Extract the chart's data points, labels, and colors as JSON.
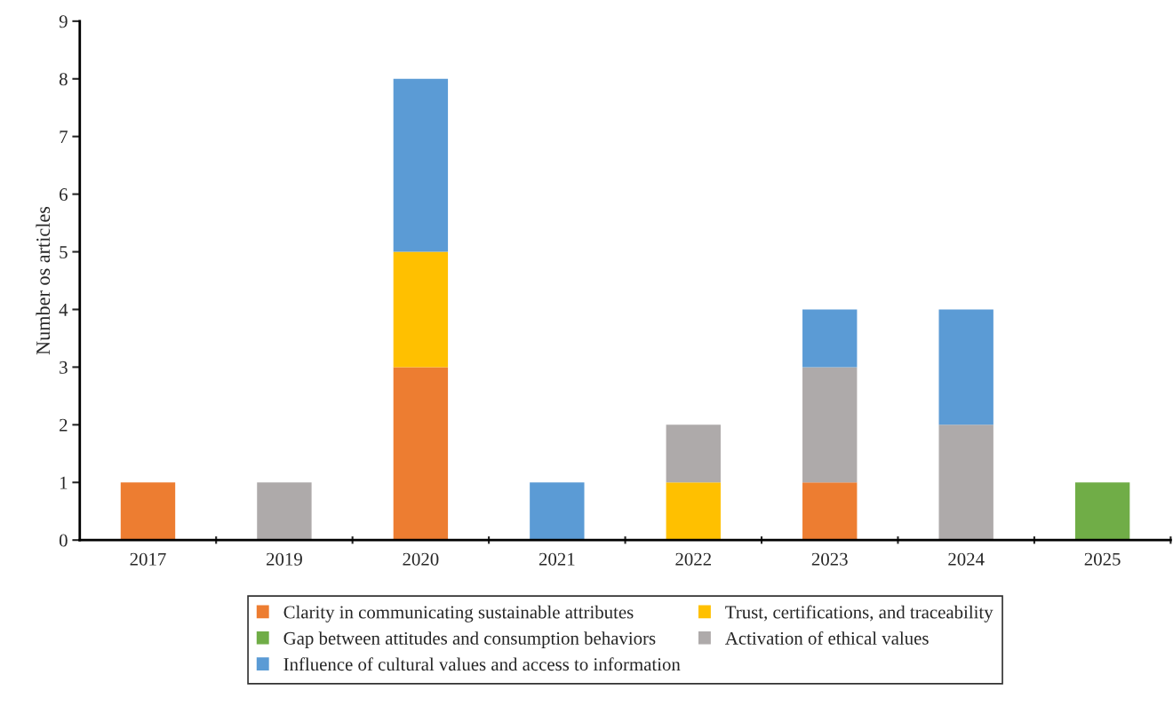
{
  "chart_data": {
    "type": "bar",
    "stacked": true,
    "ylabel": "Number os articles",
    "categories": [
      "2017",
      "2019",
      "2020",
      "2021",
      "2022",
      "2023",
      "2024",
      "2025"
    ],
    "series": [
      {
        "name": "Clarity in communicating sustainable attributes",
        "color": "#ed7d31",
        "values": [
          1,
          null,
          3,
          null,
          null,
          1,
          null,
          null
        ]
      },
      {
        "name": "Trust, certifications, and traceability",
        "color": "#ffc000",
        "values": [
          null,
          null,
          2,
          null,
          1,
          null,
          null,
          null
        ]
      },
      {
        "name": "Gap between attitudes and consumption behaviors",
        "color": "#70ad47",
        "values": [
          null,
          null,
          null,
          null,
          null,
          null,
          null,
          1
        ]
      },
      {
        "name": "Activation of ethical values",
        "color": "#aeaaaa",
        "values": [
          null,
          1,
          null,
          null,
          1,
          2,
          2,
          null
        ]
      },
      {
        "name": "Influence of cultural values and access to information",
        "color": "#5b9bd5",
        "values": [
          null,
          null,
          3,
          1,
          null,
          1,
          2,
          null
        ]
      }
    ],
    "ylim": [
      0,
      9
    ],
    "yticks": [
      0,
      1,
      2,
      3,
      4,
      5,
      6,
      7,
      8,
      9
    ],
    "grid": false,
    "legend": "bottom"
  }
}
